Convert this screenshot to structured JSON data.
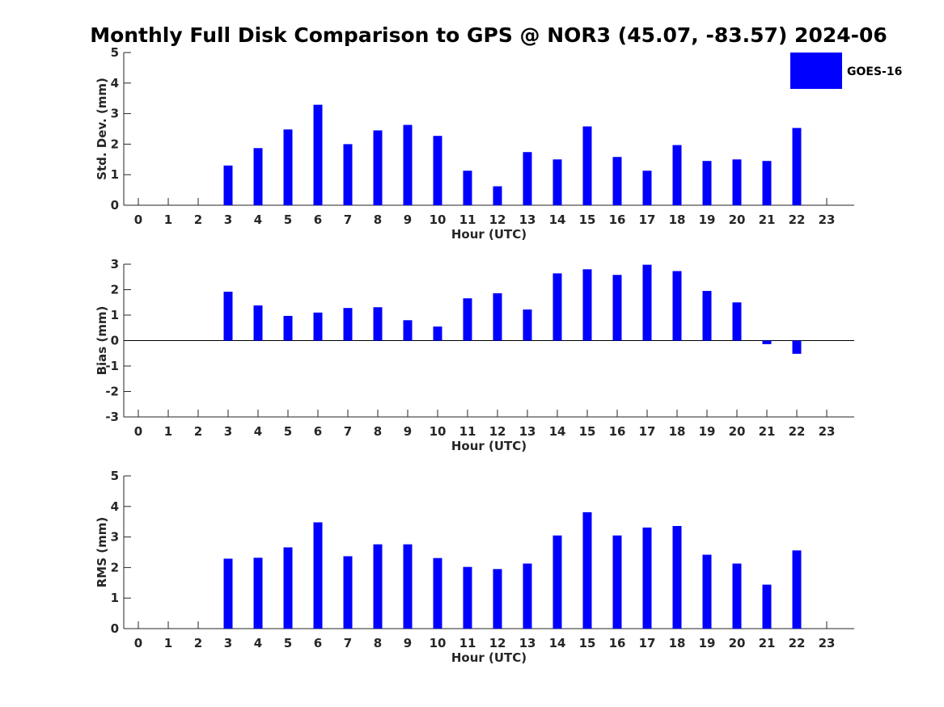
{
  "title": "Monthly Full Disk Comparison to GPS @ NOR3 (45.07, -83.57) 2024-06",
  "legend": {
    "label": "GOES-16",
    "color": "#0000ff",
    "placement": "top-right"
  },
  "chart_data": [
    {
      "type": "bar",
      "ylabel": "Std. Dev. (mm)",
      "xlabel": "Hour (UTC)",
      "ylim": [
        0,
        5
      ],
      "yticks": [
        "0",
        "1",
        "2",
        "3",
        "4",
        "5"
      ],
      "categories": [
        "0",
        "1",
        "2",
        "3",
        "4",
        "5",
        "6",
        "7",
        "8",
        "9",
        "10",
        "11",
        "12",
        "13",
        "14",
        "15",
        "16",
        "17",
        "18",
        "19",
        "20",
        "21",
        "22",
        "23"
      ],
      "series": [
        {
          "name": "GOES-16",
          "values": [
            null,
            null,
            null,
            1.3,
            1.87,
            2.48,
            3.29,
            2.0,
            2.45,
            2.63,
            2.27,
            1.13,
            0.62,
            1.74,
            1.5,
            2.58,
            1.58,
            1.13,
            1.97,
            1.45,
            1.5,
            1.45,
            2.53,
            null
          ]
        }
      ]
    },
    {
      "type": "bar",
      "ylabel": "Bias (mm)",
      "xlabel": "Hour (UTC)",
      "ylim": [
        -3,
        3
      ],
      "yticks": [
        "-3",
        "-2",
        "-1",
        "0",
        "1",
        "2",
        "3"
      ],
      "categories": [
        "0",
        "1",
        "2",
        "3",
        "4",
        "5",
        "6",
        "7",
        "8",
        "9",
        "10",
        "11",
        "12",
        "13",
        "14",
        "15",
        "16",
        "17",
        "18",
        "19",
        "20",
        "21",
        "22",
        "23"
      ],
      "series": [
        {
          "name": "GOES-16",
          "values": [
            null,
            null,
            null,
            1.92,
            1.38,
            0.97,
            1.1,
            1.28,
            1.31,
            0.8,
            0.55,
            1.66,
            1.86,
            1.22,
            2.64,
            2.8,
            2.58,
            2.98,
            2.73,
            1.95,
            1.5,
            -0.14,
            -0.52,
            null
          ]
        }
      ]
    },
    {
      "type": "bar",
      "ylabel": "RMS (mm)",
      "xlabel": "Hour (UTC)",
      "ylim": [
        0,
        5
      ],
      "yticks": [
        "0",
        "1",
        "2",
        "3",
        "4",
        "5"
      ],
      "categories": [
        "0",
        "1",
        "2",
        "3",
        "4",
        "5",
        "6",
        "7",
        "8",
        "9",
        "10",
        "11",
        "12",
        "13",
        "14",
        "15",
        "16",
        "17",
        "18",
        "19",
        "20",
        "21",
        "22",
        "23"
      ],
      "series": [
        {
          "name": "GOES-16",
          "values": [
            null,
            null,
            null,
            2.29,
            2.32,
            2.66,
            3.48,
            2.37,
            2.76,
            2.76,
            2.31,
            2.02,
            1.95,
            2.13,
            3.05,
            3.81,
            3.05,
            3.31,
            3.36,
            2.42,
            2.13,
            1.44,
            2.56,
            null
          ]
        }
      ]
    }
  ]
}
